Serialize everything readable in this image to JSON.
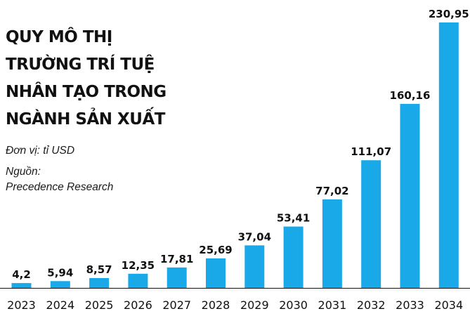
{
  "title_lines": [
    "QUY MÔ THỊ",
    "TRƯỜNG TRÍ TUỆ",
    "NHÂN TẠO TRONG",
    "NGÀNH SẢN XUẤT"
  ],
  "unit": "Đơn vị: tỉ USD",
  "source_label": "Nguồn:",
  "source_name": "Precedence Research",
  "colors": {
    "bar": "#1aa9e8",
    "axis": "#111111",
    "text": "#111111"
  },
  "chart_data": {
    "type": "bar",
    "title": "QUY MÔ THỊ TRƯỜNG TRÍ TUỆ NHÂN TẠO TRONG NGÀNH SẢN XUẤT",
    "ylabel": "Đơn vị: tỉ USD",
    "xlabel": "",
    "categories": [
      "2023",
      "2024",
      "2025",
      "2026",
      "2027",
      "2028",
      "2029",
      "2030",
      "2031",
      "2032",
      "2033",
      "2034"
    ],
    "values": [
      4.2,
      5.94,
      8.57,
      12.35,
      17.81,
      25.69,
      37.04,
      53.41,
      77.02,
      111.07,
      160.16,
      230.95
    ],
    "value_labels": [
      "4,2",
      "5,94",
      "8,57",
      "12,35",
      "17,81",
      "25,69",
      "37,04",
      "53,41",
      "77,02",
      "111,07",
      "160,16",
      "230,95"
    ],
    "ylim": [
      0,
      230.95
    ],
    "grid": false
  }
}
